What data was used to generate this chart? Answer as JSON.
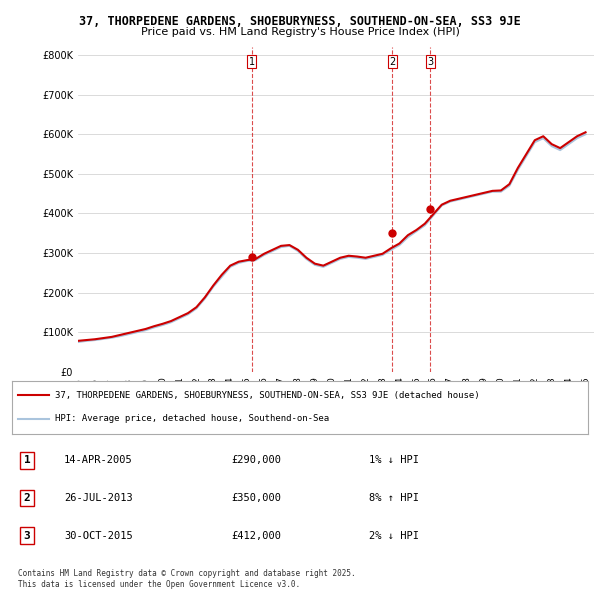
{
  "title1": "37, THORPEDENE GARDENS, SHOEBURYNESS, SOUTHEND-ON-SEA, SS3 9JE",
  "title2": "Price paid vs. HM Land Registry's House Price Index (HPI)",
  "legend_label_red": "37, THORPEDENE GARDENS, SHOEBURYNESS, SOUTHEND-ON-SEA, SS3 9JE (detached house)",
  "legend_label_blue": "HPI: Average price, detached house, Southend-on-Sea",
  "footnote": "Contains HM Land Registry data © Crown copyright and database right 2025.\nThis data is licensed under the Open Government Licence v3.0.",
  "transactions": [
    {
      "num": 1,
      "date": "14-APR-2005",
      "price": 290000,
      "pct": "1%",
      "dir": "↓",
      "x": 2005.28
    },
    {
      "num": 2,
      "date": "26-JUL-2013",
      "price": 350000,
      "pct": "8%",
      "dir": "↑",
      "x": 2013.57
    },
    {
      "num": 3,
      "date": "30-OCT-2015",
      "price": 412000,
      "pct": "2%",
      "dir": "↓",
      "x": 2015.83
    }
  ],
  "ylim": [
    0,
    820000
  ],
  "yticks": [
    0,
    100000,
    200000,
    300000,
    400000,
    500000,
    600000,
    700000,
    800000
  ],
  "background_color": "#ffffff",
  "grid_color": "#cccccc",
  "hpi_color": "#aac4dd",
  "price_color": "#cc0000",
  "dashed_color": "#cc0000",
  "hpi_data": {
    "years": [
      1995.0,
      1995.5,
      1996.0,
      1996.5,
      1997.0,
      1997.5,
      1998.0,
      1998.5,
      1999.0,
      1999.5,
      2000.0,
      2000.5,
      2001.0,
      2001.5,
      2002.0,
      2002.5,
      2003.0,
      2003.5,
      2004.0,
      2004.5,
      2005.0,
      2005.5,
      2006.0,
      2006.5,
      2007.0,
      2007.5,
      2008.0,
      2008.5,
      2009.0,
      2009.5,
      2010.0,
      2010.5,
      2011.0,
      2011.5,
      2012.0,
      2012.5,
      2013.0,
      2013.5,
      2014.0,
      2014.5,
      2015.0,
      2015.5,
      2016.0,
      2016.5,
      2017.0,
      2017.5,
      2018.0,
      2018.5,
      2019.0,
      2019.5,
      2020.0,
      2020.5,
      2021.0,
      2021.5,
      2022.0,
      2022.5,
      2023.0,
      2023.5,
      2024.0,
      2024.5,
      2025.0
    ],
    "values": [
      75000,
      78000,
      80000,
      83000,
      86000,
      90000,
      95000,
      100000,
      105000,
      112000,
      118000,
      125000,
      135000,
      145000,
      160000,
      185000,
      215000,
      240000,
      265000,
      275000,
      280000,
      282000,
      295000,
      305000,
      315000,
      318000,
      305000,
      285000,
      270000,
      265000,
      275000,
      285000,
      290000,
      288000,
      285000,
      290000,
      295000,
      308000,
      320000,
      340000,
      355000,
      370000,
      395000,
      420000,
      430000,
      435000,
      440000,
      445000,
      450000,
      455000,
      455000,
      470000,
      510000,
      545000,
      580000,
      590000,
      570000,
      560000,
      575000,
      590000,
      600000
    ]
  },
  "price_data": {
    "years": [
      1995.0,
      1995.5,
      1996.0,
      1996.5,
      1997.0,
      1997.5,
      1998.0,
      1998.5,
      1999.0,
      1999.5,
      2000.0,
      2000.5,
      2001.0,
      2001.5,
      2002.0,
      2002.5,
      2003.0,
      2003.5,
      2004.0,
      2004.5,
      2005.0,
      2005.5,
      2006.0,
      2006.5,
      2007.0,
      2007.5,
      2008.0,
      2008.5,
      2009.0,
      2009.5,
      2010.0,
      2010.5,
      2011.0,
      2011.5,
      2012.0,
      2012.5,
      2013.0,
      2013.5,
      2014.0,
      2014.5,
      2015.0,
      2015.5,
      2016.0,
      2016.5,
      2017.0,
      2017.5,
      2018.0,
      2018.5,
      2019.0,
      2019.5,
      2020.0,
      2020.5,
      2021.0,
      2021.5,
      2022.0,
      2022.5,
      2023.0,
      2023.5,
      2024.0,
      2024.5,
      2025.0
    ],
    "values": [
      78000,
      80000,
      82000,
      85000,
      88000,
      93000,
      98000,
      103000,
      108000,
      115000,
      121000,
      128000,
      138000,
      148000,
      163000,
      188000,
      218000,
      245000,
      268000,
      278000,
      282000,
      285000,
      298000,
      308000,
      318000,
      320000,
      308000,
      288000,
      273000,
      268000,
      278000,
      288000,
      293000,
      291000,
      288000,
      293000,
      298000,
      312000,
      324000,
      345000,
      358000,
      374000,
      398000,
      422000,
      432000,
      437000,
      442000,
      447000,
      452000,
      457000,
      458000,
      474000,
      515000,
      550000,
      585000,
      595000,
      575000,
      565000,
      580000,
      595000,
      605000
    ]
  }
}
